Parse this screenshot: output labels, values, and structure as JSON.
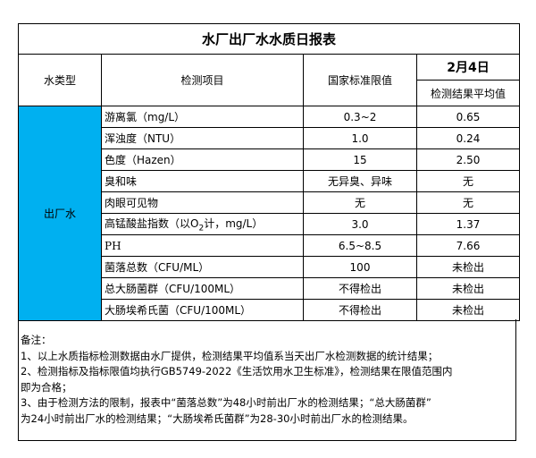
{
  "title": "水厂出厂水水质日报表",
  "headers": {
    "water_type": "水类型",
    "item": "检测项目",
    "limit": "国家标准限值",
    "date": "2月4日",
    "result": "检测结果平均值"
  },
  "water_type_value": "出厂水",
  "colors": {
    "water_type_cell": "#00B0F0"
  },
  "rows": [
    {
      "item": "游离氯（mg/L）",
      "limit": "0.3~2",
      "result": "0.65"
    },
    {
      "item": "浑浊度（NTU）",
      "limit": "1.0",
      "result": "0.24"
    },
    {
      "item": "色度（Hazen）",
      "limit": "15",
      "result": "2.50"
    },
    {
      "item": "臭和味",
      "limit": "无异臭、异味",
      "result": "无"
    },
    {
      "item": "肉眼可见物",
      "limit": "无",
      "result": "无"
    },
    {
      "item_prefix": "高锰酸盐指数（以O",
      "item_sub": "2",
      "item_suffix": "计，mg/L）",
      "limit": "3.0",
      "result": "1.37"
    },
    {
      "item": "PH",
      "limit": "6.5~8.5",
      "result": "7.66"
    },
    {
      "item": "菌落总数（CFU/ML）",
      "limit": "100",
      "result": "未检出"
    },
    {
      "item": "总大肠菌群（CFU/100ML）",
      "limit": "不得检出",
      "result": "未检出"
    },
    {
      "item": "大肠埃希氏菌（CFU/100ML）",
      "limit": "不得检出",
      "result": "未检出"
    }
  ],
  "notes": [
    "备注：",
    "1、以上水质指标检测数据由水厂提供，检测结果平均值系当天出厂水检测数据的统计结果；",
    "2、检测指标及指标限值均执行GB5749-2022《生活饮用水卫生标准》，检测结果在限值范围内",
    "即为合格；",
    "3、由于检测方法的限制，报表中“菌落总数”为48小时前出厂水的检测结果；“总大肠菌群”",
    "为24小时前出厂水的检测结果；“大肠埃希氏菌群”为28-30小时前出厂水的检测结果。"
  ]
}
